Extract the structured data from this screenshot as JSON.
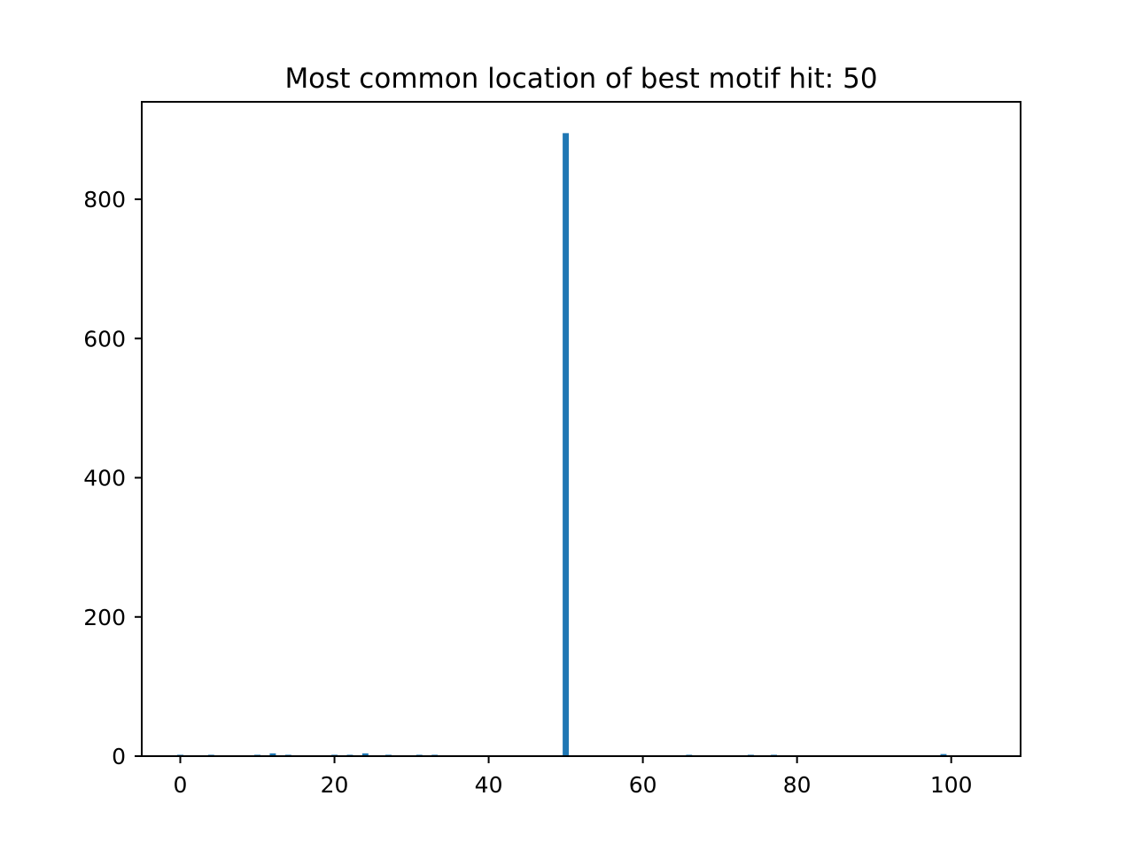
{
  "chart_data": {
    "type": "bar",
    "title": "Most common location of best motif hit: 50",
    "xlabel": "",
    "ylabel": "",
    "xlim": [
      -5,
      109
    ],
    "ylim": [
      0,
      940
    ],
    "x_ticks": [
      0,
      20,
      40,
      60,
      80,
      100
    ],
    "y_ticks": [
      0,
      200,
      400,
      600,
      800
    ],
    "grid": false,
    "bar_color": "#1f77b4",
    "bar_width": 0.8,
    "x": [
      0,
      4,
      10,
      12,
      14,
      20,
      22,
      24,
      27,
      31,
      33,
      50,
      66,
      74,
      77,
      99
    ],
    "values": [
      2,
      2,
      2,
      4,
      2,
      2,
      2,
      4,
      2,
      2,
      2,
      895,
      2,
      2,
      2,
      3
    ]
  }
}
